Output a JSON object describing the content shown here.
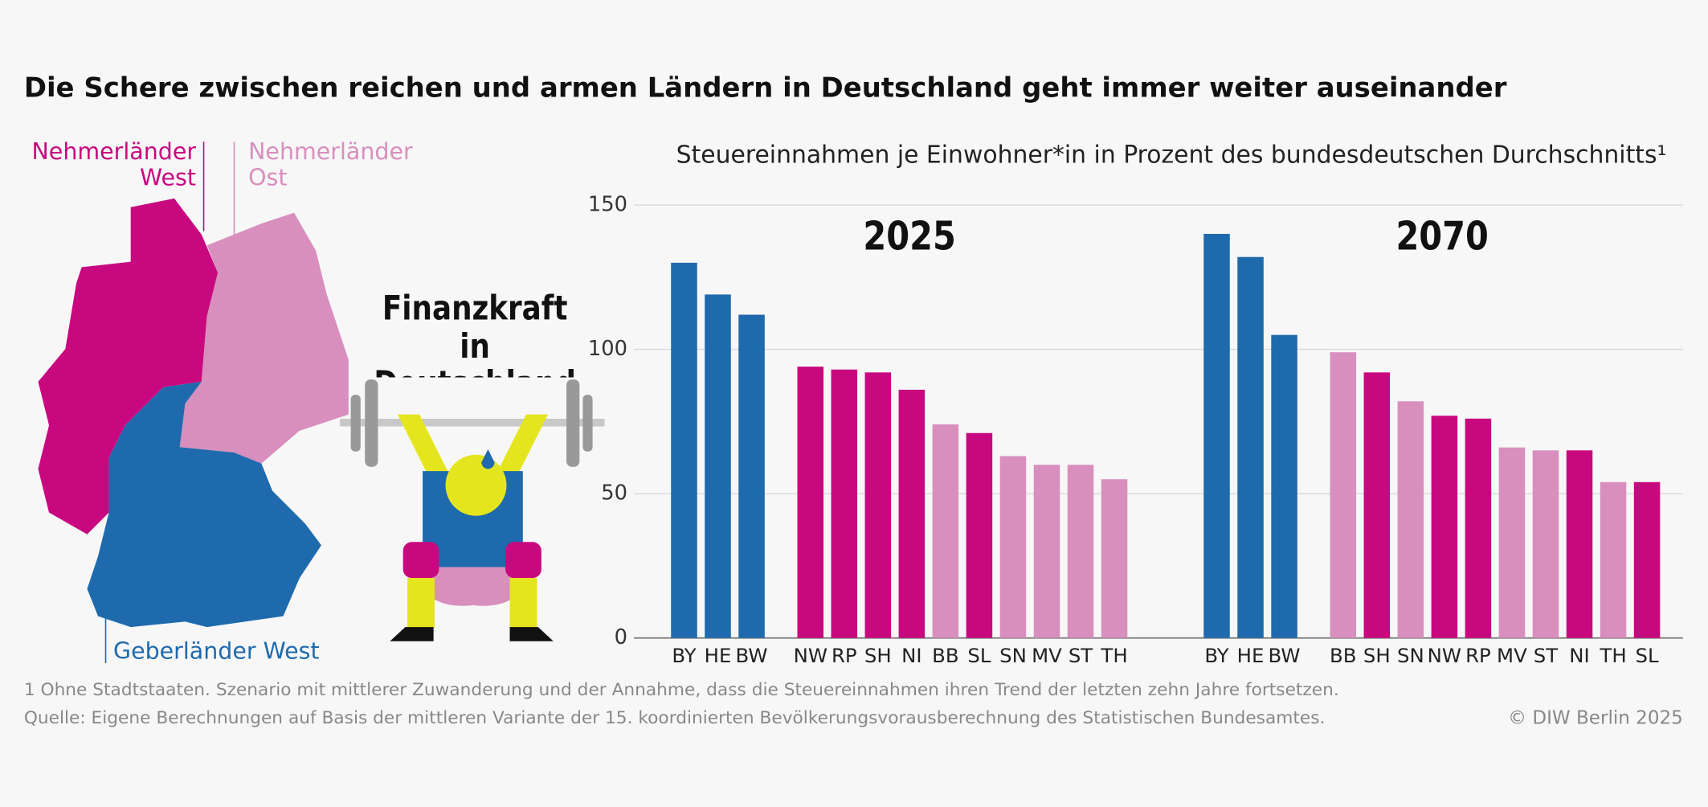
{
  "chart_data": {
    "type": "bar",
    "title": "Die Schere zwischen reichen und armen Ländern in Deutschland geht immer weiter auseinander",
    "subtitle": "Steuereinnahmen je Einwohner*in in Prozent des bundesdeutschen Durchschnitts¹",
    "illustration_label": "Finanzkraft in Deutschland",
    "legend": [
      {
        "name": "Nehmerländer West",
        "color": "#c8087f"
      },
      {
        "name": "Nehmerländer Ost",
        "color": "#d88fbd"
      },
      {
        "name": "Geberländer West",
        "color": "#1f6aad"
      }
    ],
    "ylim": [
      0,
      150
    ],
    "yticks": [
      0,
      50,
      100,
      150
    ],
    "grid": true,
    "panels": [
      {
        "title": "2025",
        "categories": [
          "BY",
          "HE",
          "BW",
          "NW",
          "RP",
          "SH",
          "NI",
          "BB",
          "SL",
          "SN",
          "MV",
          "ST",
          "TH"
        ],
        "values": [
          130,
          119,
          112,
          94,
          93,
          92,
          86,
          74,
          71,
          63,
          60,
          60,
          55
        ],
        "colors": [
          "#1f6aad",
          "#1f6aad",
          "#1f6aad",
          "#c8087f",
          "#c8087f",
          "#c8087f",
          "#c8087f",
          "#d88fbd",
          "#c8087f",
          "#d88fbd",
          "#d88fbd",
          "#d88fbd",
          "#d88fbd"
        ]
      },
      {
        "title": "2070",
        "categories": [
          "BY",
          "HE",
          "BW",
          "BB",
          "SH",
          "SN",
          "NW",
          "RP",
          "MV",
          "ST",
          "NI",
          "TH",
          "SL"
        ],
        "values": [
          140,
          132,
          105,
          99,
          92,
          82,
          77,
          76,
          66,
          65,
          65,
          54,
          54
        ],
        "colors": [
          "#1f6aad",
          "#1f6aad",
          "#1f6aad",
          "#d88fbd",
          "#c8087f",
          "#d88fbd",
          "#c8087f",
          "#c8087f",
          "#d88fbd",
          "#d88fbd",
          "#c8087f",
          "#d88fbd",
          "#c8087f"
        ]
      }
    ],
    "footnote": "1  Ohne Stadtstaaten. Szenario mit mittlerer Zuwanderung und der Annahme, dass die Steuereinnahmen ihren Trend der letzten zehn Jahre fortsetzen.",
    "source": "Quelle: Eigene Berechnungen auf Basis der mittleren Variante  der 15. koordinierten Bevölkerungsvorausberechnung des Statistischen Bundesamtes.",
    "copyright": "© DIW Berlin 2025"
  }
}
